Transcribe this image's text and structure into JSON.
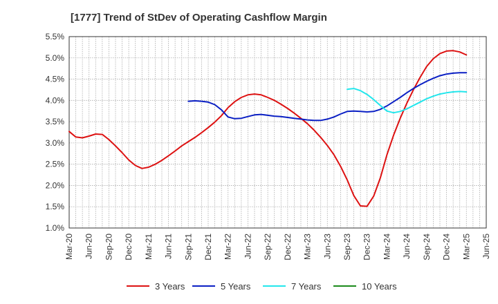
{
  "chart_data": {
    "type": "line",
    "title": "[1777]  Trend of StDev of Operating Cashflow Margin",
    "xlabel": "",
    "ylabel": "",
    "x_ticks": [
      "Mar-20",
      "Jun-20",
      "Sep-20",
      "Dec-20",
      "Mar-21",
      "Jun-21",
      "Sep-21",
      "Dec-21",
      "Mar-22",
      "Jun-22",
      "Sep-22",
      "Dec-22",
      "Mar-23",
      "Jun-23",
      "Sep-23",
      "Dec-23",
      "Mar-24",
      "Jun-24",
      "Sep-24",
      "Dec-24",
      "Mar-25",
      "Jun-25"
    ],
    "y_ticks": [
      "1.0%",
      "1.5%",
      "2.0%",
      "2.5%",
      "3.0%",
      "3.5%",
      "4.0%",
      "4.5%",
      "5.0%",
      "5.5%"
    ],
    "ylim": [
      1.0,
      5.5
    ],
    "grid": true,
    "legend_position": "bottom",
    "series": [
      {
        "name": "3 Years",
        "color": "#dd1111",
        "x": [
          "Mar-20",
          "Apr-20",
          "May-20",
          "Jun-20",
          "Jul-20",
          "Aug-20",
          "Sep-20",
          "Oct-20",
          "Nov-20",
          "Dec-20",
          "Jan-21",
          "Feb-21",
          "Mar-21",
          "Apr-21",
          "May-21",
          "Jun-21",
          "Jul-21",
          "Aug-21",
          "Sep-21",
          "Oct-21",
          "Nov-21",
          "Dec-21",
          "Jan-22",
          "Feb-22",
          "Mar-22",
          "Apr-22",
          "May-22",
          "Jun-22",
          "Jul-22",
          "Aug-22",
          "Sep-22",
          "Oct-22",
          "Nov-22",
          "Dec-22",
          "Jan-23",
          "Feb-23",
          "Mar-23",
          "Apr-23",
          "May-23",
          "Jun-23",
          "Jul-23",
          "Aug-23",
          "Sep-23",
          "Oct-23",
          "Nov-23",
          "Dec-23",
          "Jan-24",
          "Feb-24",
          "Mar-24",
          "Apr-24",
          "May-24",
          "Jun-24",
          "Jul-24",
          "Aug-24",
          "Sep-24",
          "Oct-24",
          "Nov-24",
          "Dec-24",
          "Jan-25",
          "Feb-25",
          "Mar-25"
        ],
        "values": [
          3.27,
          3.14,
          3.12,
          3.16,
          3.21,
          3.2,
          3.08,
          2.93,
          2.77,
          2.6,
          2.47,
          2.4,
          2.43,
          2.5,
          2.59,
          2.7,
          2.81,
          2.93,
          3.03,
          3.13,
          3.24,
          3.36,
          3.49,
          3.64,
          3.83,
          3.97,
          4.07,
          4.13,
          4.15,
          4.13,
          4.07,
          4.0,
          3.91,
          3.81,
          3.7,
          3.58,
          3.45,
          3.3,
          3.13,
          2.94,
          2.72,
          2.45,
          2.13,
          1.76,
          1.52,
          1.51,
          1.75,
          2.18,
          2.72,
          3.18,
          3.58,
          3.93,
          4.25,
          4.54,
          4.8,
          4.98,
          5.1,
          5.16,
          5.17,
          5.14,
          5.07
        ]
      },
      {
        "name": "5 Years",
        "color": "#0a1fc4",
        "x": [
          "Sep-21",
          "Oct-21",
          "Nov-21",
          "Dec-21",
          "Jan-22",
          "Feb-22",
          "Mar-22",
          "Apr-22",
          "May-22",
          "Jun-22",
          "Jul-22",
          "Aug-22",
          "Sep-22",
          "Oct-22",
          "Nov-22",
          "Dec-22",
          "Jan-23",
          "Feb-23",
          "Mar-23",
          "Apr-23",
          "May-23",
          "Jun-23",
          "Jul-23",
          "Aug-23",
          "Sep-23",
          "Oct-23",
          "Nov-23",
          "Dec-23",
          "Jan-24",
          "Feb-24",
          "Mar-24",
          "Apr-24",
          "May-24",
          "Jun-24",
          "Jul-24",
          "Aug-24",
          "Sep-24",
          "Oct-24",
          "Nov-24",
          "Dec-24",
          "Jan-25",
          "Feb-25",
          "Mar-25"
        ],
        "values": [
          3.98,
          3.99,
          3.98,
          3.96,
          3.9,
          3.78,
          3.61,
          3.57,
          3.58,
          3.62,
          3.66,
          3.67,
          3.65,
          3.63,
          3.62,
          3.6,
          3.58,
          3.56,
          3.54,
          3.53,
          3.53,
          3.56,
          3.61,
          3.68,
          3.74,
          3.75,
          3.74,
          3.73,
          3.74,
          3.79,
          3.87,
          3.97,
          4.07,
          4.18,
          4.28,
          4.37,
          4.45,
          4.52,
          4.58,
          4.62,
          4.64,
          4.65,
          4.65
        ]
      },
      {
        "name": "7 Years",
        "color": "#22e6ec",
        "x": [
          "Sep-23",
          "Oct-23",
          "Nov-23",
          "Dec-23",
          "Jan-24",
          "Feb-24",
          "Mar-24",
          "Apr-24",
          "May-24",
          "Jun-24",
          "Jul-24",
          "Aug-24",
          "Sep-24",
          "Oct-24",
          "Nov-24",
          "Dec-24",
          "Jan-25",
          "Feb-25",
          "Mar-25"
        ],
        "values": [
          4.26,
          4.28,
          4.23,
          4.14,
          4.02,
          3.88,
          3.75,
          3.71,
          3.74,
          3.8,
          3.88,
          3.96,
          4.04,
          4.1,
          4.15,
          4.18,
          4.2,
          4.21,
          4.2
        ]
      },
      {
        "name": "10 Years",
        "color": "#1a8a1a",
        "x": [],
        "values": []
      }
    ]
  }
}
